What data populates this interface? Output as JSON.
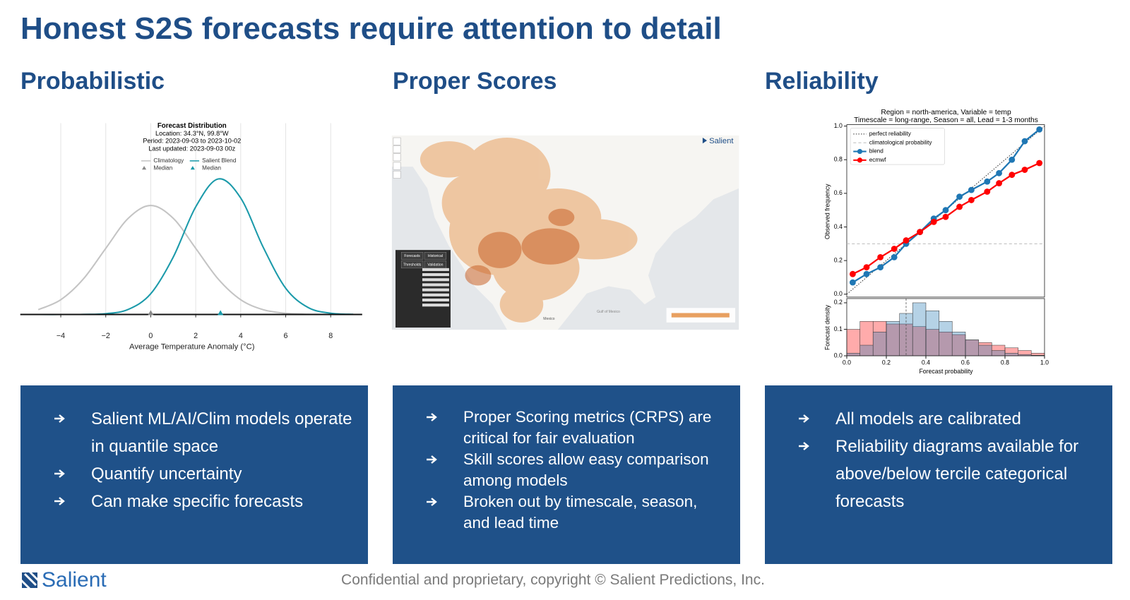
{
  "slide": {
    "title": "Honest S2S forecasts require attention to detail",
    "columns": [
      {
        "heading": "Probabilistic",
        "bullets": [
          "Salient ML/AI/Clim models operate in quantile space",
          "Quantify uncertainty",
          "Can make specific forecasts"
        ]
      },
      {
        "heading": "Proper Scores",
        "bullets": [
          "Proper Scoring metrics (CRPS) are critical for fair evaluation",
          "Skill scores allow easy comparison among models",
          "Broken out by timescale, season, and lead time"
        ]
      },
      {
        "heading": "Reliability",
        "bullets": [
          "All models are calibrated",
          "Reliability diagrams available for above/below tercile categorical  forecasts"
        ]
      }
    ]
  },
  "footer": {
    "logo": "Salient",
    "copyright": "Confidential and proprietary, copyright © Salient Predictions, Inc."
  },
  "map": {
    "logo": "Salient",
    "tabs": [
      "Forecasts",
      "Historical"
    ],
    "subtabs": [
      "Thresholds",
      "Validation"
    ],
    "labels": [
      "Mexico",
      "Gulf of Mexico"
    ]
  },
  "chart_data": [
    {
      "type": "line",
      "title": "Forecast Distribution",
      "subtitle": [
        "Location: 34.3°N, 99.8°W",
        "Period: 2023-09-03 to 2023-10-02",
        "Last updated: 2023-09-03 00z"
      ],
      "x": [
        -5,
        -4,
        -3,
        -2,
        -1,
        0,
        1,
        2,
        3,
        4,
        5,
        6,
        7,
        8,
        9
      ],
      "series": [
        {
          "name": "Climatology",
          "color": "#c4c4c4",
          "values": [
            0.0088,
            0.027,
            0.0648,
            0.121,
            0.176,
            0.1995,
            0.176,
            0.121,
            0.0648,
            0.027,
            0.0088,
            0.0022,
            0.0004,
            0.0001,
            0
          ],
          "median": 0,
          "median_label": "Median"
        },
        {
          "name": "Salient Blend",
          "color": "#1b9aaa",
          "values": [
            0,
            0,
            0.0002,
            0.0015,
            0.0093,
            0.038,
            0.105,
            0.197,
            0.248,
            0.213,
            0.123,
            0.048,
            0.0127,
            0.0023,
            0.0003
          ],
          "median": 3.1,
          "median_label": "Median"
        }
      ],
      "xlim": [
        -5.8,
        9.4
      ],
      "ylim": [
        0,
        0.35
      ],
      "xticks": [
        {
          "value": -4,
          "label": "−4"
        },
        {
          "value": -2,
          "label": "−2"
        },
        0,
        2,
        4,
        6,
        8
      ],
      "xlabel": "Average Temperature Anomaly (°C)",
      "grid": true
    },
    {
      "type": "line",
      "title": "Region = north-america, Variable = temp",
      "subtitle": "Timescale = long-range, Season = all, Lead = 1-3 months",
      "x": [
        0.03,
        0.1,
        0.17,
        0.24,
        0.3,
        0.37,
        0.44,
        0.5,
        0.57,
        0.63,
        0.71,
        0.77,
        0.835,
        0.9,
        0.974
      ],
      "series": [
        {
          "name": "blend",
          "color": "#1f77b4",
          "values": [
            0.07,
            0.12,
            0.16,
            0.22,
            0.3,
            0.37,
            0.45,
            0.5,
            0.58,
            0.62,
            0.67,
            0.72,
            0.8,
            0.91,
            0.98
          ]
        },
        {
          "name": "ecmwf",
          "color": "#ff0000",
          "values": [
            0.12,
            0.16,
            0.22,
            0.27,
            0.32,
            0.37,
            0.43,
            0.46,
            0.52,
            0.56,
            0.61,
            0.66,
            0.71,
            0.74,
            0.78
          ]
        }
      ],
      "reference_lines": [
        {
          "name": "perfect reliability"
        },
        {
          "name": "climatological probability",
          "value": 0.3
        }
      ],
      "xlim": [
        0,
        1
      ],
      "ylim": [
        0,
        1
      ],
      "yticks": [
        {
          "value": 0,
          "label": "0.0"
        },
        {
          "value": 0.2,
          "label": "0.2"
        },
        {
          "value": 0.4,
          "label": "0.4"
        },
        {
          "value": 0.6,
          "label": "0.6"
        },
        {
          "value": 0.8,
          "label": "0.8"
        },
        {
          "value": 1,
          "label": "1.0"
        }
      ],
      "ylabel": "Observed frequency",
      "legend": "upper left"
    },
    {
      "type": "histogram",
      "bins": [
        0,
        0.067,
        0.133,
        0.2,
        0.267,
        0.333,
        0.4,
        0.467,
        0.533,
        0.6,
        0.667,
        0.733,
        0.8,
        0.867,
        0.933,
        1
      ],
      "series": [
        {
          "color": "#ff0000",
          "values": [
            0.1,
            0.13,
            0.13,
            0.12,
            0.12,
            0.11,
            0.1,
            0.09,
            0.08,
            0.06,
            0.05,
            0.04,
            0.03,
            0.02,
            0.01
          ]
        },
        {
          "color": "#1f77b4",
          "values": [
            0.01,
            0.04,
            0.09,
            0.13,
            0.16,
            0.2,
            0.17,
            0.13,
            0.09,
            0.06,
            0.04,
            0.02,
            0.01,
            0.005,
            0.002
          ]
        }
      ],
      "median": 0.3,
      "xlim": [
        0,
        1
      ],
      "ylim": [
        0,
        0.216
      ],
      "xticks": [
        {
          "value": 0,
          "label": "0.0"
        },
        {
          "value": 0.2,
          "label": "0.2"
        },
        {
          "value": 0.4,
          "label": "0.4"
        },
        {
          "value": 0.6,
          "label": "0.6"
        },
        {
          "value": 0.8,
          "label": "0.8"
        },
        {
          "value": 1,
          "label": "1.0"
        }
      ],
      "yticks": [
        {
          "value": 0,
          "label": "0.0"
        },
        {
          "value": 0.1,
          "label": "0.1"
        },
        {
          "value": 0.2,
          "label": "0.2"
        }
      ],
      "xlabel": "Forecast probability",
      "ylabel": "Forecast density"
    }
  ]
}
